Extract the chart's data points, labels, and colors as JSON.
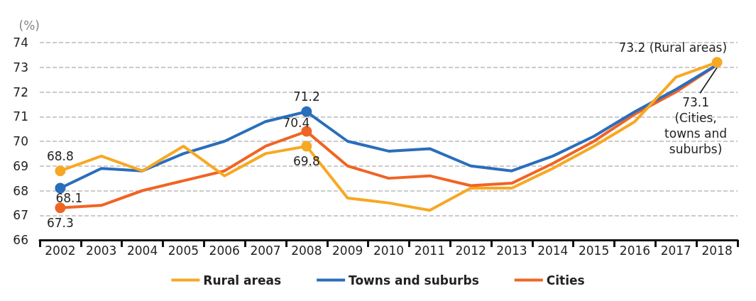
{
  "chart_data": {
    "type": "line",
    "ylabel": "(%)",
    "categories": [
      "2002",
      "2003",
      "2004",
      "2005",
      "2006",
      "2007",
      "2008",
      "2009",
      "2010",
      "2011",
      "2012",
      "2013",
      "2014",
      "2015",
      "2016",
      "2017",
      "2018"
    ],
    "series": [
      {
        "name": "Rural areas",
        "color": "#f7a823",
        "values": [
          68.8,
          69.4,
          68.8,
          69.8,
          68.6,
          69.5,
          69.8,
          67.7,
          67.5,
          67.2,
          68.1,
          68.1,
          68.9,
          69.8,
          70.8,
          72.6,
          73.2
        ],
        "value_labels": [
          "68.8",
          null,
          null,
          null,
          null,
          null,
          "69.8",
          null,
          null,
          null,
          null,
          null,
          null,
          null,
          null,
          null,
          "73.2 (Rural areas)"
        ]
      },
      {
        "name": "Towns and suburbs",
        "color": "#2a6ebb",
        "values": [
          68.1,
          68.9,
          68.8,
          69.5,
          70.0,
          70.8,
          71.2,
          70.0,
          69.6,
          69.7,
          69.0,
          68.8,
          69.4,
          70.2,
          71.2,
          72.1,
          73.1
        ],
        "value_labels": [
          "68.1",
          null,
          null,
          null,
          null,
          null,
          "71.2",
          null,
          null,
          null,
          null,
          null,
          null,
          null,
          null,
          null,
          null
        ]
      },
      {
        "name": "Cities",
        "color": "#f06424",
        "values": [
          67.3,
          67.4,
          68.0,
          68.4,
          68.8,
          69.8,
          70.4,
          69.0,
          68.5,
          68.6,
          68.2,
          68.3,
          69.1,
          70.0,
          71.1,
          72.0,
          73.1
        ],
        "value_labels": [
          "67.3",
          null,
          null,
          null,
          null,
          null,
          "70.4",
          null,
          null,
          null,
          null,
          null,
          null,
          null,
          null,
          null,
          null
        ]
      }
    ],
    "annotations": [
      {
        "text": "73.1\n(Cities,\ntowns and\nsuburbs)",
        "x": "2018",
        "y": 73.1
      }
    ],
    "ylim": [
      66,
      74
    ],
    "yticks": [
      66,
      67,
      68,
      69,
      70,
      71,
      72,
      73,
      74
    ],
    "grid": "y",
    "legend": "bottom",
    "line_style": "solid"
  }
}
